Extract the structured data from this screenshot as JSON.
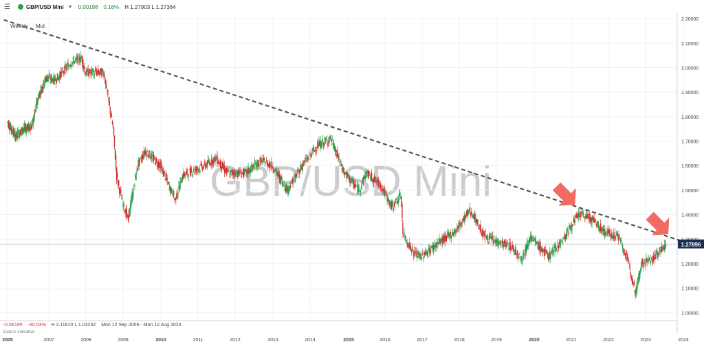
{
  "topbar": {
    "symbol": "GBP/USD Mini",
    "change": "0.00198",
    "change_pct": "0.16%",
    "high_low": "H 1.27903  L 1.27384",
    "status_color": "#2e9e4a",
    "menu_icon": "hamburger-icon"
  },
  "chart_options": {
    "interval": "Weekly",
    "price_type": "Mid"
  },
  "watermark": "GBP/USD Mini",
  "footer": {
    "note": "Data is indicative",
    "change": "-0.56195",
    "change_pct": "-30.53%",
    "hl": "H 2.11610   L 1.03242",
    "range": "Mon 12 Sep 2005 - Mon 12 Aug 2024"
  },
  "price_label": "1.27896",
  "chart_data": {
    "type": "candlestick",
    "up_color": "#2e9e4a",
    "down_color": "#d32f2f",
    "x_ticks": [
      "2005",
      "2007",
      "2008",
      "2009",
      "2010",
      "2011",
      "2012",
      "2013",
      "2014",
      "2015",
      "2016",
      "2017",
      "2018",
      "2019",
      "2020",
      "2021",
      "2022",
      "2023",
      "2024"
    ],
    "bold_ticks": [
      "2005",
      "2010",
      "2015",
      "2020"
    ],
    "y_ticks": [
      "2.20000",
      "2.10000",
      "2.00000",
      "1.90000",
      "1.80000",
      "1.70000",
      "1.60000",
      "1.50000",
      "1.40000",
      "1.30000",
      "1.20000",
      "1.10000",
      "1.00000"
    ],
    "ylim": [
      0.97,
      2.22
    ],
    "current_price": 1.27896,
    "price_path": [
      [
        2005.0,
        1.78
      ],
      [
        2005.4,
        1.72
      ],
      [
        2005.8,
        1.75
      ],
      [
        2006.2,
        1.76
      ],
      [
        2006.5,
        1.88
      ],
      [
        2006.9,
        1.96
      ],
      [
        2007.2,
        1.95
      ],
      [
        2007.6,
        2.02
      ],
      [
        2007.9,
        2.04
      ],
      [
        2008.0,
        1.98
      ],
      [
        2008.2,
        1.98
      ],
      [
        2008.5,
        1.98
      ],
      [
        2008.75,
        1.75
      ],
      [
        2008.85,
        1.55
      ],
      [
        2009.0,
        1.45
      ],
      [
        2009.15,
        1.38
      ],
      [
        2009.4,
        1.6
      ],
      [
        2009.6,
        1.66
      ],
      [
        2010.0,
        1.6
      ],
      [
        2010.4,
        1.46
      ],
      [
        2010.6,
        1.56
      ],
      [
        2010.9,
        1.58
      ],
      [
        2011.2,
        1.6
      ],
      [
        2011.5,
        1.63
      ],
      [
        2011.8,
        1.57
      ],
      [
        2012.3,
        1.57
      ],
      [
        2012.7,
        1.62
      ],
      [
        2013.0,
        1.6
      ],
      [
        2013.4,
        1.5
      ],
      [
        2013.8,
        1.6
      ],
      [
        2014.2,
        1.68
      ],
      [
        2014.55,
        1.71
      ],
      [
        2014.9,
        1.57
      ],
      [
        2015.3,
        1.5
      ],
      [
        2015.5,
        1.57
      ],
      [
        2015.9,
        1.52
      ],
      [
        2016.2,
        1.43
      ],
      [
        2016.45,
        1.48
      ],
      [
        2016.5,
        1.32
      ],
      [
        2016.8,
        1.24
      ],
      [
        2017.0,
        1.23
      ],
      [
        2017.5,
        1.29
      ],
      [
        2017.9,
        1.33
      ],
      [
        2018.3,
        1.42
      ],
      [
        2018.7,
        1.31
      ],
      [
        2019.0,
        1.29
      ],
      [
        2019.4,
        1.27
      ],
      [
        2019.7,
        1.22
      ],
      [
        2019.9,
        1.31
      ],
      [
        2020.2,
        1.26
      ],
      [
        2020.4,
        1.23
      ],
      [
        2020.8,
        1.3
      ],
      [
        2021.2,
        1.4
      ],
      [
        2021.5,
        1.39
      ],
      [
        2021.9,
        1.33
      ],
      [
        2022.3,
        1.31
      ],
      [
        2022.6,
        1.18
      ],
      [
        2022.75,
        1.08
      ],
      [
        2022.9,
        1.2
      ],
      [
        2023.2,
        1.22
      ],
      [
        2023.5,
        1.27
      ],
      [
        2023.55,
        1.279
      ]
    ],
    "trendline": [
      [
        2004.9,
        2.195
      ],
      [
        2024.0,
        1.29
      ]
    ],
    "arrows": [
      [
        2021.1,
        1.44
      ],
      [
        2023.6,
        1.32
      ]
    ]
  }
}
